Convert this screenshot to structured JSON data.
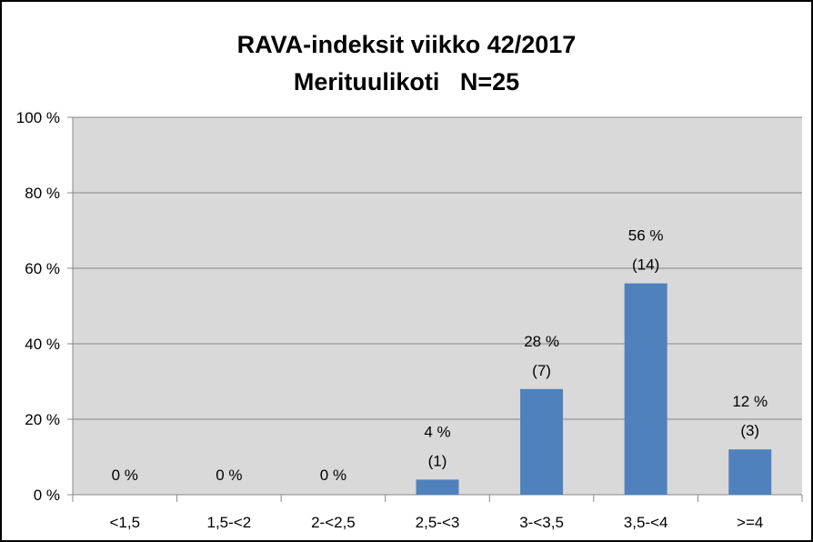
{
  "chart_data": {
    "type": "bar",
    "title": "RAVA-indeksit viikko 42/2017",
    "subtitle": "Merituulikoti   N=25",
    "categories": [
      "<1,5",
      "1,5-<2",
      "2-<2,5",
      "2,5-<3",
      "3-<3,5",
      "3,5-<4",
      ">=4"
    ],
    "values": [
      0,
      0,
      0,
      4,
      28,
      56,
      12
    ],
    "counts": [
      0,
      0,
      0,
      1,
      7,
      14,
      3
    ],
    "value_labels": [
      "0 %",
      "0 %",
      "0 %",
      "4 %",
      "28 %",
      "56 %",
      "12 %"
    ],
    "count_labels": [
      "",
      "",
      "",
      "(1)",
      "(7)",
      "(14)",
      "(3)"
    ],
    "ylim": [
      0,
      100
    ],
    "yticks": [
      0,
      20,
      40,
      60,
      80,
      100
    ],
    "ytick_labels": [
      "0 %",
      "20 %",
      "40 %",
      "60 %",
      "80 %",
      "100 %"
    ],
    "grid": true,
    "legend": "none",
    "colors": {
      "bar": "#4F81BD",
      "plot_background": "#D9D9D9",
      "grid": "#888888"
    }
  }
}
